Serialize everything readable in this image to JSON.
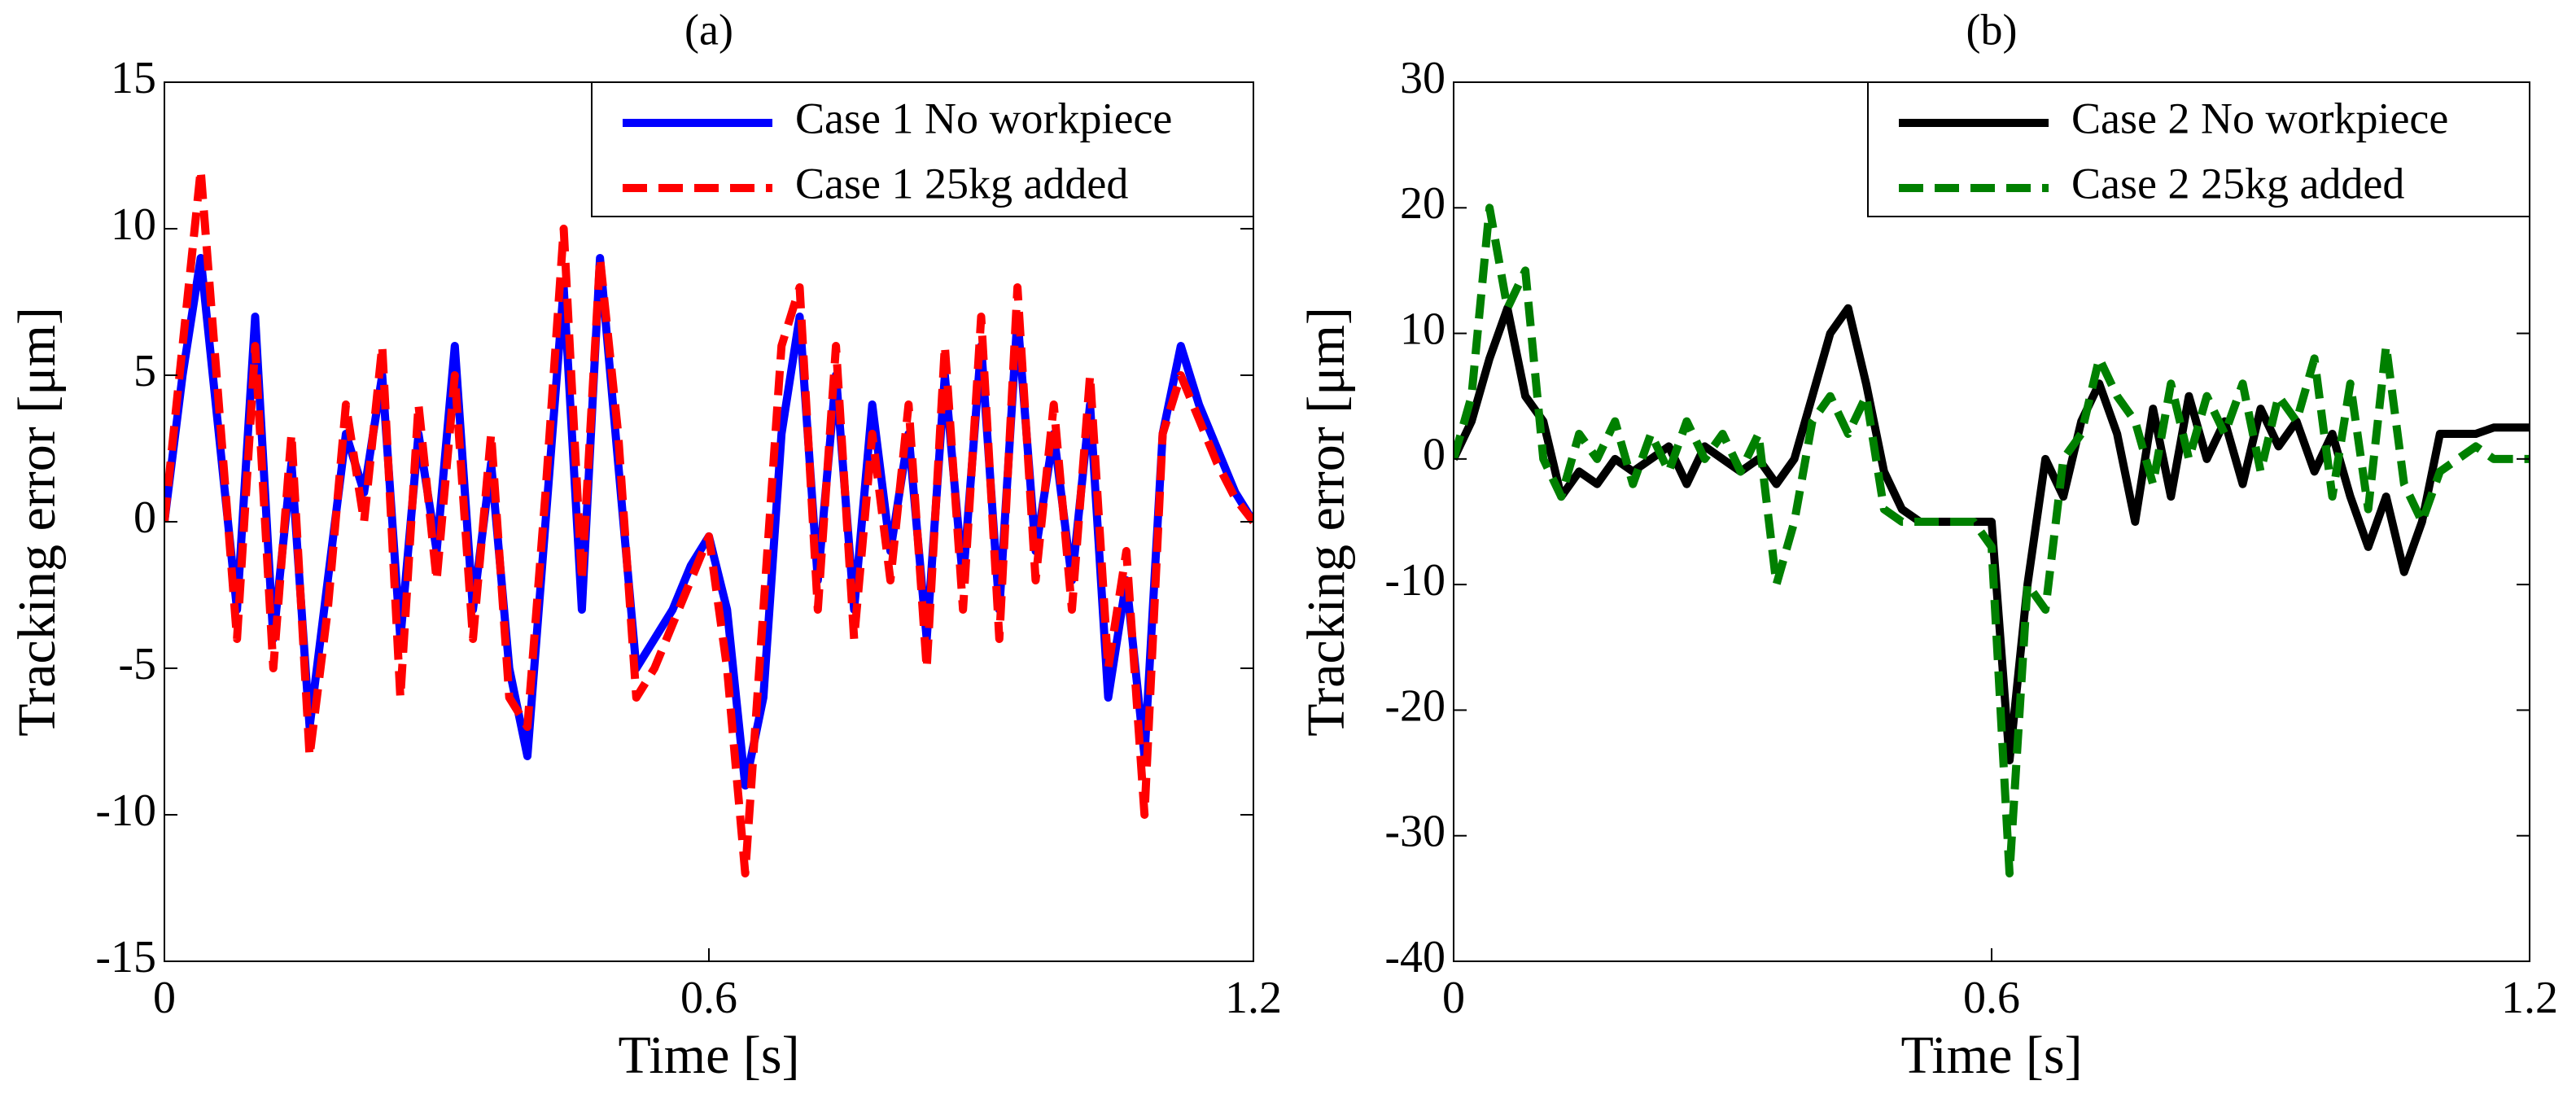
{
  "chart_data": [
    {
      "type": "line",
      "title": "(a)",
      "x_label": "Time [s]",
      "y_label": "Tracking error [μm]",
      "x": [
        0,
        0.02,
        0.04,
        0.06,
        0.08,
        0.1,
        0.12,
        0.14,
        0.16,
        0.18,
        0.2,
        0.22,
        0.24,
        0.26,
        0.28,
        0.3,
        0.32,
        0.34,
        0.36,
        0.38,
        0.4,
        0.42,
        0.44,
        0.46,
        0.48,
        0.5,
        0.52,
        0.54,
        0.56,
        0.58,
        0.6,
        0.62,
        0.64,
        0.66,
        0.68,
        0.7,
        0.72,
        0.74,
        0.76,
        0.78,
        0.8,
        0.82,
        0.84,
        0.86,
        0.88,
        0.9,
        0.92,
        0.94,
        0.96,
        0.98,
        1.0,
        1.02,
        1.04,
        1.06,
        1.08,
        1.1,
        1.12,
        1.14,
        1.16,
        1.18,
        1.2
      ],
      "series": [
        {
          "name": "Case 1  No workpiece",
          "color": "#0000ff",
          "linestyle": "solid",
          "values": [
            0,
            5,
            9,
            3,
            -3,
            7,
            -4,
            2,
            -7,
            -2,
            3,
            1,
            5,
            -4,
            3,
            -1,
            6,
            -3,
            2,
            -5,
            -8,
            0,
            8,
            -3,
            9,
            2,
            -5,
            -4,
            -3,
            -1.5,
            -0.5,
            -3,
            -9,
            -6,
            3,
            7,
            -2,
            5,
            -3,
            4,
            -1,
            3,
            -4,
            5,
            -2,
            6,
            -3,
            7,
            -1,
            3,
            -2,
            4,
            -6,
            -2,
            -8,
            3,
            6,
            4,
            2.5,
            1,
            0
          ]
        },
        {
          "name": "Case 1  25kg  added",
          "color": "#ff0000",
          "linestyle": "dashed",
          "values": [
            0,
            6,
            12,
            4,
            -4,
            6,
            -5,
            3,
            -8,
            -3,
            4,
            0,
            6,
            -6,
            4,
            -2,
            5,
            -4,
            3,
            -6,
            -7,
            1,
            10,
            -2,
            9,
            3,
            -6,
            -5,
            -3.5,
            -2,
            -0.5,
            -5,
            -12,
            -3,
            6,
            8,
            -3,
            6,
            -4,
            3,
            -2,
            4,
            -5,
            6,
            -3,
            7,
            -4,
            8,
            -2,
            4,
            -3,
            5,
            -5,
            -1,
            -10,
            3,
            5,
            3.5,
            2,
            0.8,
            0
          ]
        }
      ],
      "xlim": [
        0,
        1.2
      ],
      "xticks": [
        0,
        0.6,
        1.2
      ],
      "ylim": [
        -15,
        15
      ],
      "yticks": [
        -15,
        -10,
        -5,
        0,
        5,
        10,
        15
      ],
      "legend": "upper right"
    },
    {
      "type": "line",
      "title": "(b)",
      "x_label": "Time [s]",
      "y_label": "Tracking error [μm]",
      "x": [
        0,
        0.02,
        0.04,
        0.06,
        0.08,
        0.1,
        0.12,
        0.14,
        0.16,
        0.18,
        0.2,
        0.22,
        0.24,
        0.26,
        0.28,
        0.3,
        0.32,
        0.34,
        0.36,
        0.38,
        0.4,
        0.42,
        0.44,
        0.46,
        0.48,
        0.5,
        0.52,
        0.54,
        0.56,
        0.58,
        0.6,
        0.62,
        0.64,
        0.66,
        0.68,
        0.7,
        0.72,
        0.74,
        0.76,
        0.78,
        0.8,
        0.82,
        0.84,
        0.86,
        0.88,
        0.9,
        0.92,
        0.94,
        0.96,
        0.98,
        1.0,
        1.02,
        1.04,
        1.06,
        1.08,
        1.1,
        1.12,
        1.14,
        1.16,
        1.18,
        1.2
      ],
      "series": [
        {
          "name": "Case 2  No workpiece",
          "color": "#000000",
          "linestyle": "solid",
          "values": [
            0,
            3,
            8,
            12,
            5,
            3,
            -3,
            -1,
            -2,
            0,
            -1,
            0,
            1,
            -2,
            1,
            0,
            -1,
            0,
            -2,
            0,
            5,
            10,
            12,
            6,
            -1,
            -4,
            -5,
            -5,
            -5,
            -5,
            -5,
            -24,
            -10,
            0,
            -3,
            3,
            6,
            2,
            -5,
            4,
            -3,
            5,
            0,
            3,
            -2,
            4,
            1,
            3,
            -1,
            2,
            -3,
            -7,
            -3,
            -9,
            -5,
            2,
            2,
            2,
            2.5,
            2.5,
            2.5
          ]
        },
        {
          "name": "Case 2 25kg  added",
          "color": "#008000",
          "linestyle": "dashed",
          "values": [
            0,
            5,
            20,
            12,
            15,
            0,
            -3,
            2,
            0,
            3,
            -2,
            2,
            -1,
            3,
            0,
            2,
            -1,
            2,
            -10,
            -5,
            3,
            5,
            2,
            5,
            -4,
            -5,
            -5,
            -5,
            -5,
            -5,
            -7,
            -33,
            -10,
            -12,
            0,
            2,
            8,
            5,
            3,
            -2,
            6,
            0,
            5,
            2,
            6,
            -1,
            5,
            3,
            8,
            -3,
            6,
            -4,
            9,
            -2,
            -5,
            -1,
            0,
            1,
            0,
            0,
            0
          ]
        }
      ],
      "xlim": [
        0,
        1.2
      ],
      "xticks": [
        0,
        0.6,
        1.2
      ],
      "ylim": [
        -40,
        30
      ],
      "yticks": [
        -40,
        -30,
        -20,
        -10,
        0,
        10,
        20,
        30
      ],
      "legend": "upper right"
    }
  ]
}
